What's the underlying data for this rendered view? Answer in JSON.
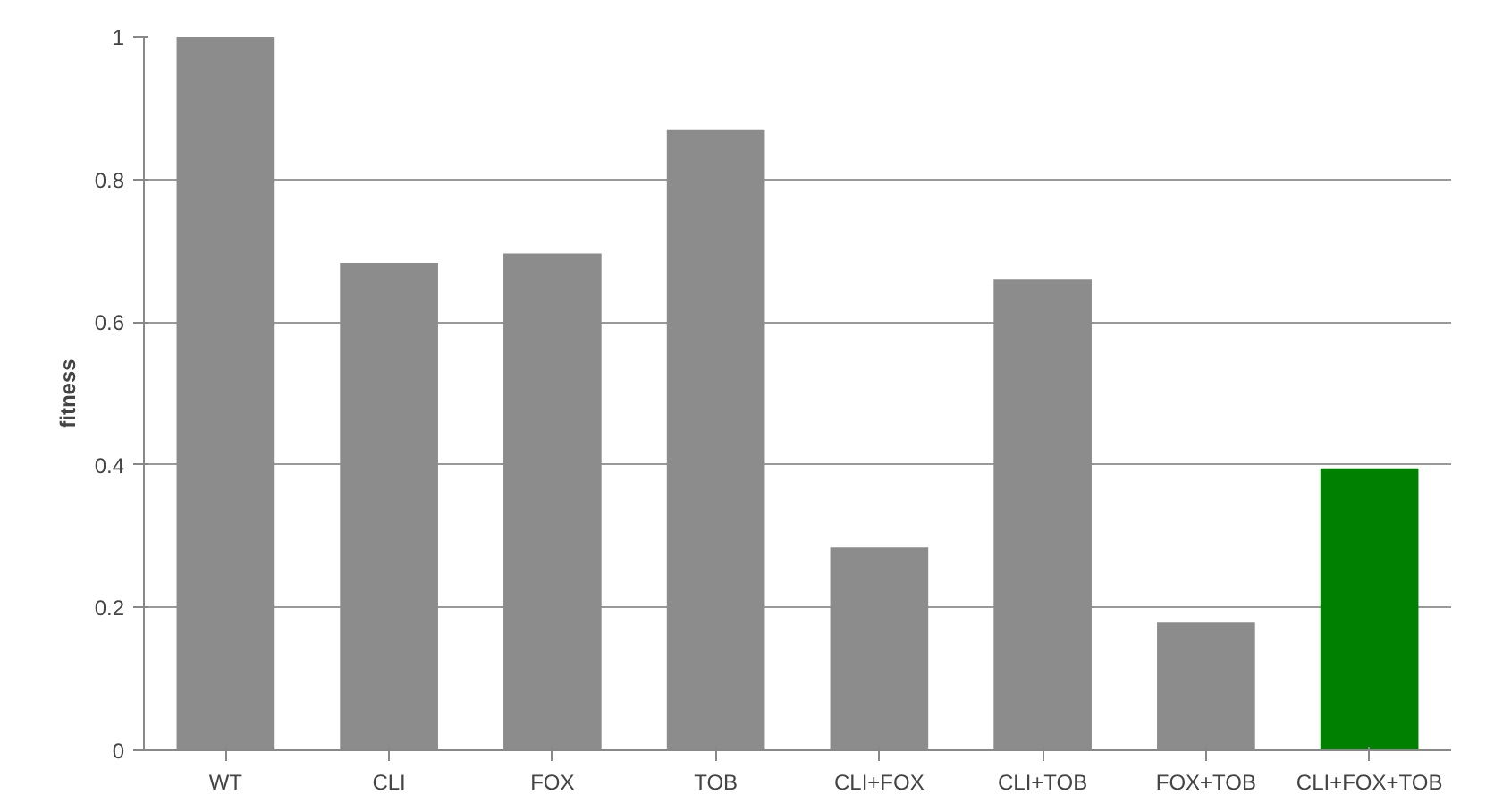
{
  "chart_data": {
    "type": "bar",
    "ylabel": "fitness",
    "categories": [
      "WT",
      "CLI",
      "FOX",
      "TOB",
      "CLI+FOX",
      "CLI+TOB",
      "FOX+TOB",
      "CLI+FOX+TOB"
    ],
    "values": [
      1.0,
      0.683,
      0.696,
      0.87,
      0.284,
      0.66,
      0.179,
      0.395
    ],
    "colors": [
      "#8c8c8c",
      "#8c8c8c",
      "#8c8c8c",
      "#8c8c8c",
      "#8c8c8c",
      "#8c8c8c",
      "#8c8c8c",
      "#008000"
    ],
    "ylim": [
      0,
      1
    ],
    "yticks": [
      0,
      0.2,
      0.4,
      0.6,
      0.8,
      1
    ],
    "grid": "y"
  }
}
